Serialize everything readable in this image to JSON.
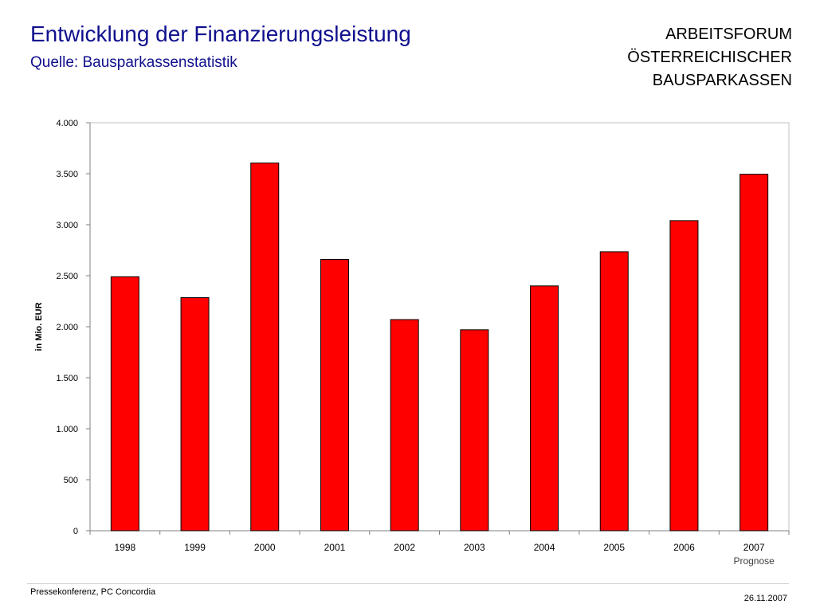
{
  "header": {
    "title": "Entwicklung der Finanzierungsleistung",
    "subtitle": "Quelle: Bausparkassenstatistik",
    "org_lines": [
      "ARBEITSFORUM",
      "ÖSTERREICHISCHER",
      "BAUSPARKASSEN"
    ]
  },
  "footer": {
    "left": "Pressekonferenz, PC Concordia",
    "right": "26.11.2007"
  },
  "chart_data": {
    "type": "bar",
    "title": "Entwicklung der Finanzierungsleistung",
    "subtitle": "Quelle: Bausparkassenstatistik",
    "xlabel": "",
    "ylabel": "in Mio. EUR",
    "categories": [
      "1998",
      "1999",
      "2000",
      "2001",
      "2002",
      "2003",
      "2004",
      "2005",
      "2006",
      "2007"
    ],
    "category_notes": [
      "",
      "",
      "",
      "",
      "",
      "",
      "",
      "",
      "",
      "Prognose"
    ],
    "values": [
      2490,
      2285,
      3605,
      2660,
      2070,
      1970,
      2400,
      2735,
      3040,
      3495
    ],
    "ylim": [
      0,
      4000
    ],
    "yticks": [
      0,
      500,
      1000,
      1500,
      2000,
      2500,
      3000,
      3500,
      4000
    ],
    "ytick_labels": [
      "0",
      "500",
      "1.000",
      "1.500",
      "2.000",
      "2.500",
      "3.000",
      "3.500",
      "4.000"
    ],
    "grid": false,
    "legend": "none",
    "bar_color": "#ff0000",
    "bar_outline_color": "#000000",
    "axis_color": "#808080"
  }
}
